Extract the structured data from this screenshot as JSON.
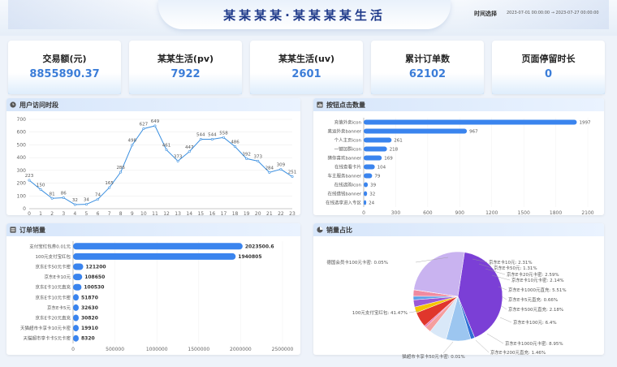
{
  "header": {
    "title": "某某某某·某某某某生活",
    "time_label": "时间选择",
    "time_start": "2023-07-01 00:00:00",
    "time_sep": "→",
    "time_end": "2023-07-27 00:00:00"
  },
  "kpis": [
    {
      "label": "交易额(元)",
      "value": "8855890.37"
    },
    {
      "label": "某某生活(pv)",
      "value": "7922"
    },
    {
      "label": "某某生活(uv)",
      "value": "2601"
    },
    {
      "label": "累计订单数",
      "value": "62102"
    },
    {
      "label": "页面停留时长",
      "value": "0"
    }
  ],
  "panels": {
    "visits": "用户访问时段",
    "clicks": "按钮点击数量",
    "orders": "订单销量",
    "share": "销量占比"
  },
  "colors": {
    "accent": "#3b7dd8",
    "bar": "#3a84ee",
    "line": "#3a8fe0"
  },
  "chart_data": [
    {
      "type": "line",
      "title": "用户访问时段",
      "x": [
        "0",
        "1",
        "2",
        "3",
        "4",
        "5",
        "6",
        "7",
        "8",
        "9",
        "10",
        "11",
        "12",
        "13",
        "14",
        "15",
        "16",
        "17",
        "18",
        "19",
        "20",
        "21",
        "22",
        "23"
      ],
      "values": [
        223,
        150,
        81,
        86,
        32,
        34,
        74,
        165,
        286,
        498,
        627,
        649,
        461,
        373,
        447,
        544,
        544,
        558,
        486,
        392,
        373,
        284,
        309,
        251
      ],
      "ylim": [
        0,
        700
      ],
      "yticks": [
        0,
        100,
        200,
        300,
        400,
        500,
        600,
        700
      ]
    },
    {
      "type": "bar",
      "orientation": "horizontal",
      "title": "按钮点击数量",
      "categories": [
        "充值外卖icon",
        "奥运外卖banner",
        "个人主页icon",
        "一键加群icon",
        "猜你喜欢banner",
        "在线查看卡片",
        "车主服务banner",
        "在线选购icon",
        "在线借钱banner",
        "在线选享进入专区"
      ],
      "values": [
        1997,
        967,
        261,
        218,
        169,
        104,
        79,
        39,
        32,
        24
      ],
      "xlim": [
        0,
        2100
      ],
      "xticks": [
        0,
        300,
        600,
        900,
        1200,
        1500,
        1800,
        2100
      ]
    },
    {
      "type": "bar",
      "orientation": "horizontal",
      "title": "订单销量",
      "categories": [
        "支付宝红包券0.01元",
        "100元支付宝红包",
        "京东E卡50元卡密",
        "京东E卡10元",
        "京东E卡10元直充",
        "京东E卡10元卡密",
        "京东E卡5元",
        "京东E卡20元直充",
        "天猫超市卡享卡10元卡密",
        "天猫超市享卡卡5元卡密"
      ],
      "values": [
        2023500.6,
        1940805,
        121200,
        108650,
        100530,
        51870,
        32630,
        30820,
        19910,
        8320
      ],
      "labels": [
        "2023500.6",
        "1940805",
        "121200",
        "108650",
        "100530",
        "51870",
        "32630",
        "30820",
        "19910",
        "8320"
      ],
      "xlim": [
        0,
        2500000
      ],
      "xticks": [
        "0",
        "500000",
        "1000000",
        "1500000",
        "2000000",
        "2500000"
      ]
    },
    {
      "type": "pie",
      "title": "销量占比",
      "slices": [
        {
          "label": "100元支付宝红包",
          "value": 41.47,
          "pct": "41.47%",
          "color": "#7b3fd6"
        },
        {
          "label": "猫超市卡享卡50元卡密",
          "value": 0.01,
          "pct": "0.01%",
          "color": "#3fb68a"
        },
        {
          "label": "京东E卡200元直充",
          "value": 1.46,
          "pct": "1.46%",
          "color": "#2f6fd6"
        },
        {
          "label": "京东E卡1000元卡密",
          "value": 8.95,
          "pct": "8.95%",
          "color": "#9cc6f0"
        },
        {
          "label": "京东E卡100元",
          "value": 6.4,
          "pct": "6.4%",
          "color": "#d9e8f8"
        },
        {
          "label": "京东E卡500元直充",
          "value": 2.18,
          "pct": "2.18%",
          "color": "#f59e9e"
        },
        {
          "label": "京东E卡5元直充",
          "value": 0.66,
          "pct": "0.66%",
          "color": "#e67ab8"
        },
        {
          "label": "京东E卡1000元直充",
          "value": 5.51,
          "pct": "5.51%",
          "color": "#e0362c"
        },
        {
          "label": "京东E卡10元卡密",
          "value": 2.14,
          "pct": "2.14%",
          "color": "#f5c400"
        },
        {
          "label": "京东E卡20元卡密",
          "value": 2.59,
          "pct": "2.59%",
          "color": "#9b59d6"
        },
        {
          "label": "京东E卡50元",
          "value": 1.31,
          "pct": "1.31%",
          "color": "#5aa0e8"
        },
        {
          "label": "京东E卡10元",
          "value": 2.31,
          "pct": "2.31%",
          "color": "#f08aa0"
        },
        {
          "label": "德国会员卡100元卡密",
          "value": 0.05,
          "pct": "0.05%",
          "color": "#ff8a3d"
        },
        {
          "label": "",
          "value": 25.0,
          "pct": "",
          "color": "#c9b3f0"
        }
      ],
      "label_list": [
        {
          "text": "德国会员卡100元卡密: 0.05%",
          "anchor": "right"
        },
        {
          "text": "京东E卡10元: 2.31%",
          "anchor": "left"
        },
        {
          "text": "京东E卡50元: 1.31%",
          "anchor": "left"
        },
        {
          "text": "京东E卡20元卡密: 2.59%",
          "anchor": "left"
        },
        {
          "text": "京东E卡10元卡密: 2.14%",
          "anchor": "left"
        },
        {
          "text": "京东E卡1000元直充: 5.51%",
          "anchor": "left"
        },
        {
          "text": "京东E卡5元直充: 0.66%",
          "anchor": "left"
        },
        {
          "text": "京东E卡500元直充: 2.18%",
          "anchor": "left"
        },
        {
          "text": "京东E卡100元: 6.4%",
          "anchor": "left"
        },
        {
          "text": "京东E卡1000元卡密: 8.95%",
          "anchor": "left"
        },
        {
          "text": "京东E卡200元直充: 1.46%",
          "anchor": "left"
        },
        {
          "text": "100元支付宝红包: 41.47%",
          "anchor": "right"
        },
        {
          "text": "猫超市卡享卡50元卡密: 0.01%",
          "anchor": "middle"
        }
      ]
    }
  ]
}
